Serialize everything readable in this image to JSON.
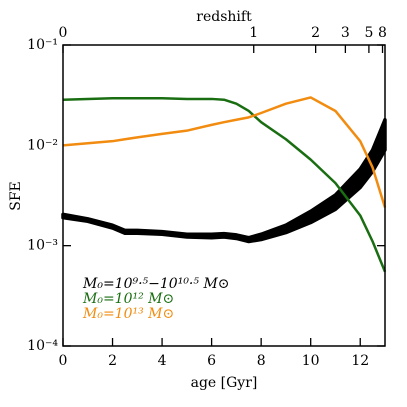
{
  "chart_data": {
    "type": "line",
    "xlabel": "age [Gyr]",
    "ylabel": "SFE",
    "x2label": "redshift",
    "xlim": [
      0,
      13
    ],
    "xticks": [
      0,
      2,
      4,
      6,
      8,
      10,
      12
    ],
    "ylim": [
      0.0001,
      0.1
    ],
    "log_y": true,
    "yticks": [
      {
        "value": 0.1,
        "label": "10⁻¹"
      },
      {
        "value": 0.01,
        "label": "10⁻²"
      },
      {
        "value": 0.001,
        "label": "10⁻³"
      },
      {
        "value": 0.0001,
        "label": "10⁻⁴"
      }
    ],
    "x2ticks": [
      {
        "value": 0,
        "label": "0"
      },
      {
        "value": 7.7,
        "label": "1"
      },
      {
        "value": 10.2,
        "label": "2"
      },
      {
        "value": 11.4,
        "label": "3"
      },
      {
        "value": 12.35,
        "label": "5"
      },
      {
        "value": 12.9,
        "label": "8"
      }
    ],
    "legend": "lower-left",
    "x": [
      0,
      1,
      2,
      2.5,
      3,
      4,
      5,
      6,
      6.5,
      7,
      7.5,
      8,
      9,
      10,
      11,
      12,
      12.5,
      13
    ],
    "series": [
      {
        "name": "M₀=10⁹·⁵−10¹⁰·⁵ M⊙",
        "color": "#000000",
        "high": [
          0.00205,
          0.00185,
          0.0016,
          0.00142,
          0.00142,
          0.00138,
          0.0013,
          0.0013,
          0.00132,
          0.00128,
          0.0012,
          0.0013,
          0.0016,
          0.0022,
          0.0032,
          0.0058,
          0.009,
          0.018
        ],
        "low": [
          0.0019,
          0.00175,
          0.0015,
          0.00133,
          0.00133,
          0.0013,
          0.00122,
          0.0012,
          0.00122,
          0.00118,
          0.0011,
          0.00115,
          0.00135,
          0.0017,
          0.0023,
          0.0038,
          0.0055,
          0.009
        ]
      },
      {
        "name": "M₀=10¹² M⊙",
        "color": "#1a6e12",
        "values": [
          0.0285,
          0.029,
          0.0295,
          0.0295,
          0.0295,
          0.0295,
          0.029,
          0.029,
          0.0285,
          0.026,
          0.022,
          0.017,
          0.0115,
          0.0072,
          0.0042,
          0.002,
          0.0011,
          0.00055
        ]
      },
      {
        "name": "M₀=10¹³ M⊙",
        "color": "#f28c10",
        "values": [
          0.01,
          0.0105,
          0.011,
          0.0115,
          0.012,
          0.013,
          0.014,
          0.016,
          0.017,
          0.018,
          0.019,
          0.021,
          0.026,
          0.03,
          0.022,
          0.011,
          0.006,
          0.0024
        ]
      }
    ]
  }
}
